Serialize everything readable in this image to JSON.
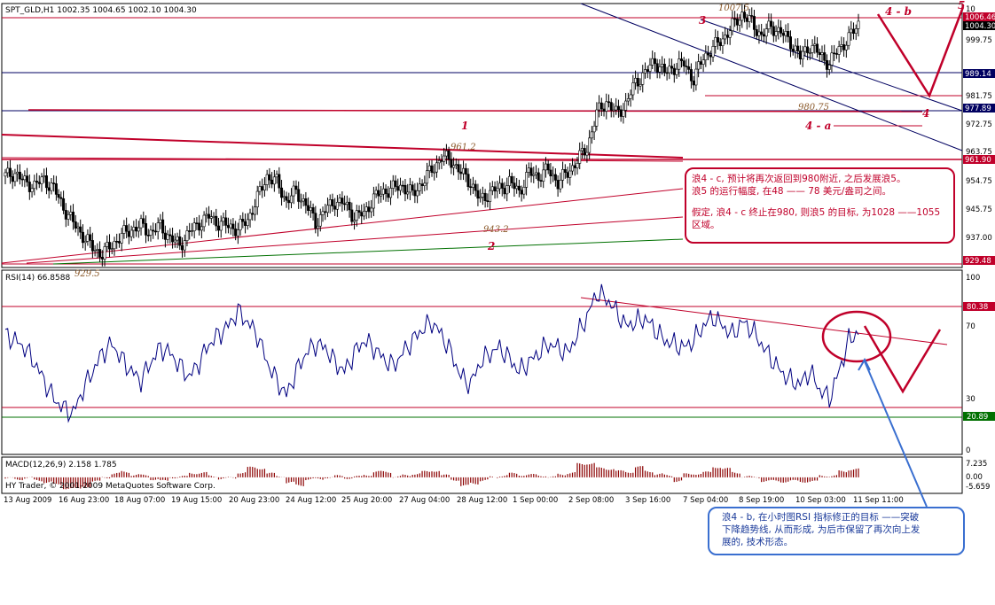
{
  "main_panel": {
    "header": "SPT_GLD,H1  1002.35 1004.65 1002.10 1004.30",
    "y_ticks": [
      "10",
      "999.75",
      "981.75",
      "972.75",
      "963.75",
      "954.75",
      "945.75",
      "937.00"
    ],
    "price_tags": [
      {
        "value": "1006.46",
        "bg": "#c0002a",
        "fg": "#ffffff"
      },
      {
        "value": "1004.30",
        "bg": "#000000",
        "fg": "#ffffff"
      },
      {
        "value": "989.14",
        "bg": "#000060",
        "fg": "#ffffff"
      },
      {
        "value": "977.89",
        "bg": "#000060",
        "fg": "#ffffff"
      },
      {
        "value": "961.90",
        "bg": "#c0002a",
        "fg": "#ffffff"
      },
      {
        "value": "929.48",
        "bg": "#c0002a",
        "fg": "#ffffff"
      }
    ],
    "level_labels": [
      "1007.5",
      "980.75",
      "961.2",
      "943.2",
      "929.5"
    ],
    "wave_labels": [
      "3",
      "4 - b",
      "5",
      "1",
      "4 - a",
      "4",
      "2"
    ]
  },
  "rsi_panel": {
    "header": "RSI(14) 66.8588",
    "y_ticks": [
      "100",
      "70",
      "30",
      "0"
    ],
    "level_tags": [
      {
        "value": "80.38",
        "bg": "#c0002a",
        "fg": "#ffffff"
      },
      {
        "value": "20.89",
        "bg": "#007000",
        "fg": "#ffffff"
      }
    ]
  },
  "macd_panel": {
    "header": "MACD(12,26,9) 2.158 1.785",
    "y_ticks": [
      "7.235",
      "0.00",
      "-5.659"
    ]
  },
  "copyright": "HY Trader, © 2001-2009 MetaQuotes Software Corp.",
  "x_ticks": [
    "13 Aug 2009",
    "16 Aug 23:00",
    "18 Aug 07:00",
    "19 Aug 15:00",
    "20 Aug 23:00",
    "24 Aug 12:00",
    "25 Aug 20:00",
    "27 Aug 04:00",
    "28 Aug 12:00",
    "1 Sep 00:00",
    "2 Sep 08:00",
    "3 Sep 16:00",
    "7 Sep 04:00",
    "8 Sep 19:00",
    "10 Sep 03:00",
    "11 Sep 11:00"
  ],
  "note_top": [
    "浪4 - c, 预计将再次返回到980附近, 之后发展浪5。",
    "浪5 的运行幅度, 在48 —— 78 美元/盎司之间。",
    "假定, 浪4 - c 终止在980, 则浪5 的目标, 为1028 ——1055",
    "区域。"
  ],
  "note_bottom": [
    "浪4 - b, 在小时图RSI 指标修正的目标 ——突破",
    "下降趋势线, 从而形成, 为后市保留了再次向上发",
    "展的, 技术形态。"
  ],
  "chart_data": [
    {
      "type": "candlestick",
      "title": "SPT_GLD,H1",
      "ohlc_last": {
        "open": 1002.35,
        "high": 1004.65,
        "low": 1002.1,
        "close": 1004.3
      },
      "x_ticks": [
        "13 Aug 2009",
        "16 Aug 23:00",
        "18 Aug 07:00",
        "19 Aug 15:00",
        "20 Aug 23:00",
        "24 Aug 12:00",
        "25 Aug 20:00",
        "27 Aug 04:00",
        "28 Aug 12:00",
        "1 Sep 00:00",
        "2 Sep 08:00",
        "3 Sep 16:00",
        "7 Sep 04:00",
        "8 Sep 19:00",
        "10 Sep 03:00",
        "11 Sep 11:00"
      ],
      "close_series": [
        955,
        956,
        953,
        952,
        954,
        951,
        945,
        940,
        936,
        932,
        930,
        933,
        936,
        938,
        939,
        937,
        939,
        935,
        933,
        937,
        940,
        942,
        940,
        939,
        938,
        941,
        948,
        955,
        953,
        947,
        950,
        946,
        940,
        944,
        947,
        946,
        942,
        943,
        948,
        950,
        951,
        952,
        949,
        953,
        957,
        961,
        960,
        956,
        953,
        947,
        950,
        951,
        953,
        950,
        956,
        955,
        957,
        953,
        956,
        960,
        964,
        975,
        979,
        975,
        978,
        985,
        988,
        992,
        988,
        990,
        991,
        986,
        993,
        996,
        999,
        1003,
        1007,
        1004,
        1000,
        1003,
        1001,
        998,
        993,
        997,
        994,
        991,
        996,
        999,
        1004
      ],
      "levels": [
        1007.5,
        980.75,
        961.2,
        943.2,
        929.5
      ],
      "ylim": [
        926,
        1010
      ]
    },
    {
      "type": "line",
      "title": "RSI(14) 66.8588",
      "values": [
        65,
        62,
        58,
        50,
        40,
        30,
        25,
        22,
        35,
        45,
        55,
        60,
        52,
        45,
        40,
        50,
        58,
        55,
        48,
        42,
        50,
        60,
        65,
        70,
        78,
        72,
        65,
        50,
        40,
        32,
        45,
        55,
        60,
        58,
        50,
        45,
        55,
        62,
        58,
        52,
        48,
        55,
        62,
        68,
        72,
        65,
        55,
        42,
        38,
        50,
        55,
        58,
        52,
        45,
        50,
        55,
        60,
        58,
        55,
        65,
        75,
        88,
        85,
        78,
        70,
        72,
        74,
        68,
        62,
        60,
        58,
        62,
        70,
        75,
        70,
        65,
        72,
        68,
        60,
        52,
        45,
        40,
        38,
        45,
        35,
        30,
        45,
        62,
        66.86
      ],
      "levels": [
        80.38,
        20.89
      ],
      "ylim": [
        0,
        100
      ]
    },
    {
      "type": "bar",
      "title": "MACD(12,26,9) 2.158 1.785",
      "macd": 2.158,
      "signal": 1.785,
      "ylim": [
        -5.659,
        7.235
      ]
    }
  ]
}
